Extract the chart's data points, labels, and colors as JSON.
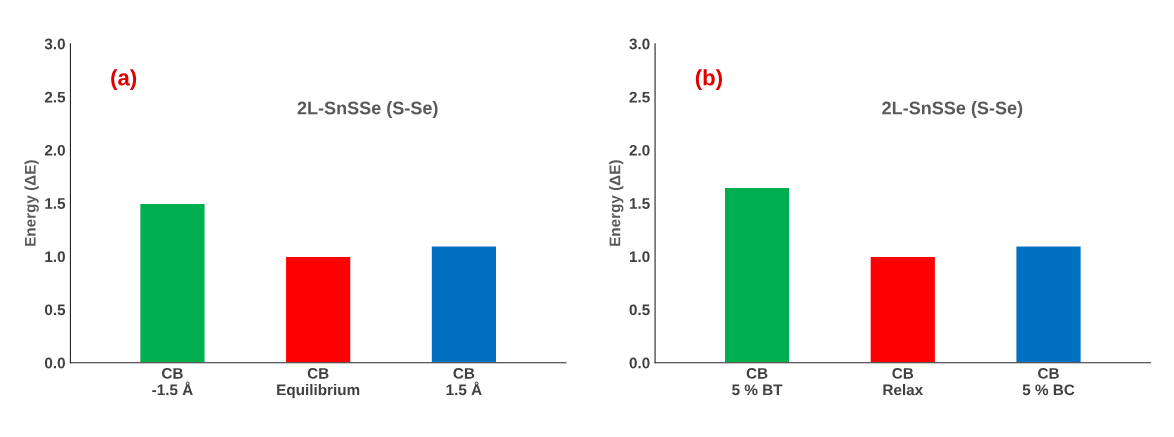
{
  "chart_data": [
    {
      "type": "bar",
      "ylabel": "Energy (ΔE)",
      "categories": [
        "CB\n-1.5 Å",
        "CB\nEquilibrium",
        "CB\n1.5 Å"
      ],
      "values": [
        1.5,
        1.0,
        1.1
      ],
      "colors": [
        "#00b050",
        "#ff0000",
        "#0070c0"
      ],
      "ylim": [
        0,
        3
      ],
      "yticks": [
        {
          "value": 0,
          "label": "0.0"
        },
        0.5,
        {
          "value": 1,
          "label": "1.0"
        },
        1.5,
        {
          "value": 2,
          "label": "2.0"
        },
        2.5,
        {
          "value": 3,
          "label": "3.0"
        }
      ],
      "grid": false,
      "annotations": [
        "(a)",
        "2L-SnSSe (S-Se)"
      ]
    },
    {
      "type": "bar",
      "ylabel": "Energy (ΔE)",
      "categories": [
        "CB\n5 % BT",
        "CB\nRelax",
        "CB\n5 % BC"
      ],
      "values": [
        1.65,
        1.0,
        1.1
      ],
      "colors": [
        "#00b050",
        "#ff0000",
        "#0070c0"
      ],
      "ylim": [
        0,
        3
      ],
      "yticks": [
        {
          "value": 0,
          "label": "0.0"
        },
        0.5,
        {
          "value": 1,
          "label": "1.0"
        },
        1.5,
        {
          "value": 2,
          "label": "2.0"
        },
        2.5,
        {
          "value": 3,
          "label": "3.0"
        }
      ],
      "grid": false,
      "annotations": [
        "(b)",
        "2L-SnSSe (S-Se)"
      ]
    }
  ]
}
